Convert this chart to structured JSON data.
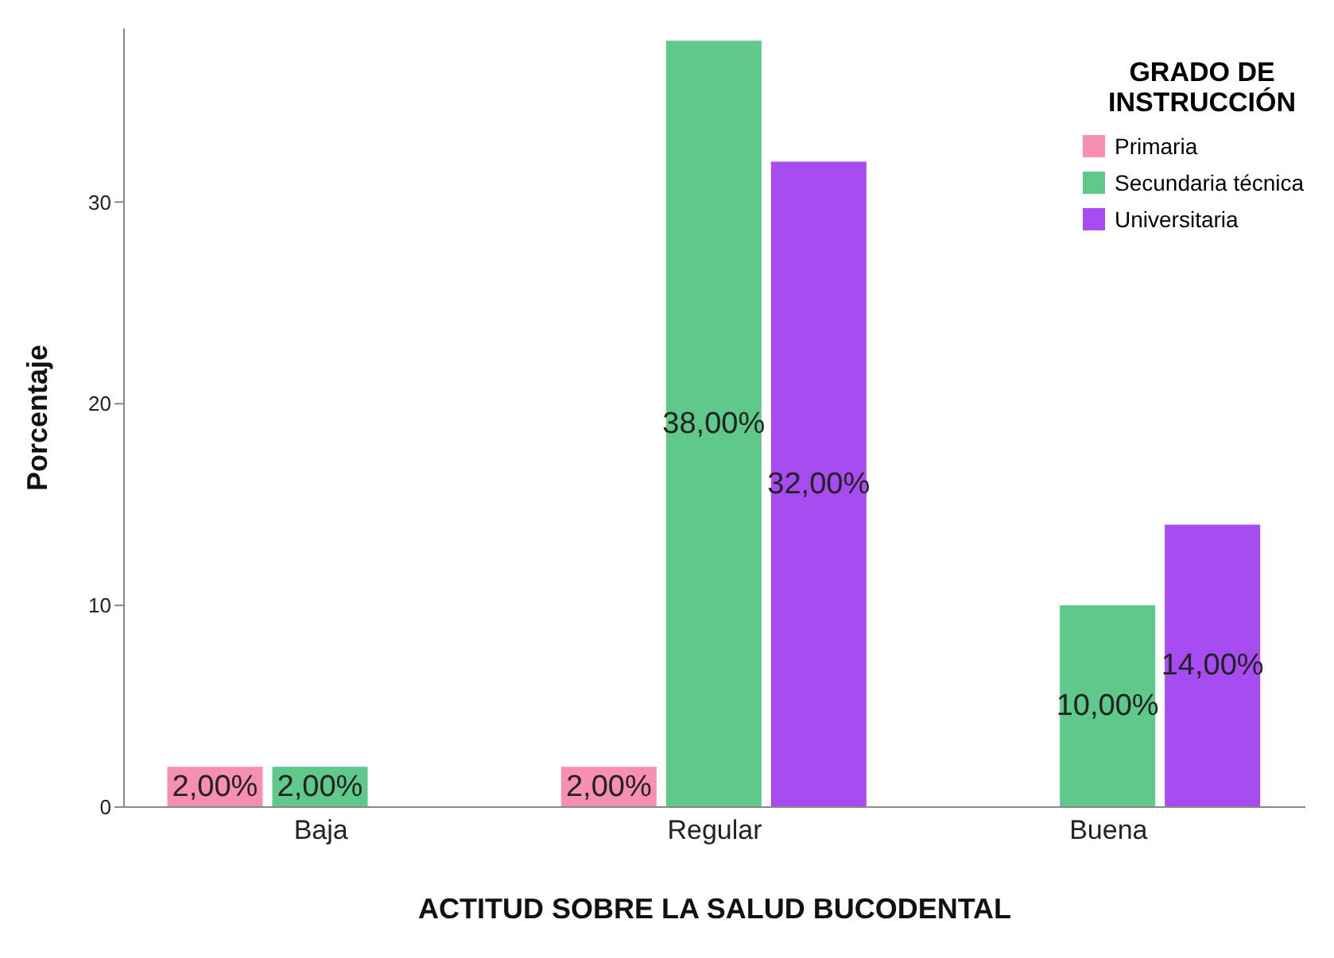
{
  "chart_data": {
    "type": "bar",
    "xlabel": "ACTITUD SOBRE LA SALUD BUCODENTAL",
    "ylabel": "Porcentaje",
    "legend_title": "GRADO DE INSTRUCCIÓN",
    "categories": [
      "Baja",
      "Regular",
      "Buena"
    ],
    "series": [
      {
        "name": "Primaria",
        "color": "#f78fb3",
        "values": [
          2,
          2,
          null
        ],
        "value_labels": [
          "2,00%",
          "2,00%",
          null
        ]
      },
      {
        "name": "Secundaria técnica",
        "color": "#5ec98a",
        "values": [
          2,
          38,
          10
        ],
        "value_labels": [
          "2,00%",
          "38,00%",
          "10,00%"
        ]
      },
      {
        "name": "Universitaria",
        "color": "#a64cf0",
        "values": [
          null,
          32,
          14
        ],
        "value_labels": [
          null,
          "32,00%",
          "14,00%"
        ]
      }
    ],
    "ylim": [
      0,
      38.6
    ],
    "yticks": [
      0,
      10,
      20,
      30
    ],
    "grid": false,
    "legend": "top right"
  }
}
